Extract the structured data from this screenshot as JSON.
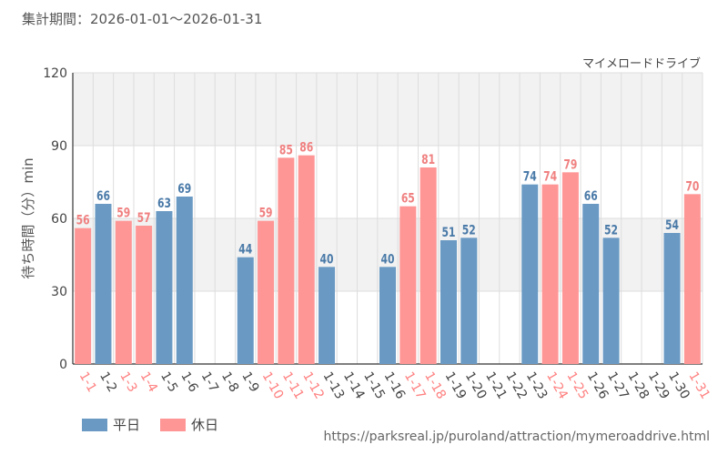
{
  "header": {
    "period_label": "集計期間：",
    "period_range": "2026-01-01～2026-01-31"
  },
  "footer": {
    "source_url": "https://parksreal.jp/puroland/attraction/mymeroaddrive.html"
  },
  "colors": {
    "weekday": "#6a9ac4",
    "holiday": "#ff9696",
    "weekday_label": "#4a7aa8",
    "holiday_label": "#f08080",
    "tick_weekday": "#444444",
    "tick_holiday": "#ff7f7f",
    "band": "#f2f2f2",
    "grid": "#dddddd"
  },
  "chart_data": {
    "type": "bar",
    "title": "マイメロードドライブ",
    "xlabel": "",
    "ylabel": "待ち時間（分）min",
    "ylim": [
      0,
      120
    ],
    "yticks": [
      0,
      30,
      60,
      90,
      120
    ],
    "categories": [
      "1-1",
      "1-2",
      "1-3",
      "1-4",
      "1-5",
      "1-6",
      "1-7",
      "1-8",
      "1-9",
      "1-10",
      "1-11",
      "1-12",
      "1-13",
      "1-14",
      "1-15",
      "1-16",
      "1-17",
      "1-18",
      "1-19",
      "1-20",
      "1-21",
      "1-22",
      "1-23",
      "1-24",
      "1-25",
      "1-26",
      "1-27",
      "1-28",
      "1-29",
      "1-30",
      "1-31"
    ],
    "values": [
      56,
      66,
      59,
      57,
      63,
      69,
      null,
      null,
      44,
      59,
      85,
      86,
      40,
      null,
      null,
      40,
      65,
      81,
      51,
      52,
      null,
      null,
      74,
      74,
      79,
      66,
      52,
      null,
      null,
      54,
      70
    ],
    "day_type": [
      "holiday",
      "weekday",
      "holiday",
      "holiday",
      "weekday",
      "weekday",
      "weekday",
      "weekday",
      "weekday",
      "holiday",
      "holiday",
      "holiday",
      "weekday",
      "weekday",
      "weekday",
      "weekday",
      "holiday",
      "holiday",
      "weekday",
      "weekday",
      "weekday",
      "weekday",
      "weekday",
      "holiday",
      "holiday",
      "weekday",
      "weekday",
      "weekday",
      "weekday",
      "weekday",
      "holiday"
    ],
    "legend": [
      {
        "key": "weekday",
        "label": "平日"
      },
      {
        "key": "holiday",
        "label": "休日"
      }
    ],
    "legend_position": "bottom-left"
  }
}
